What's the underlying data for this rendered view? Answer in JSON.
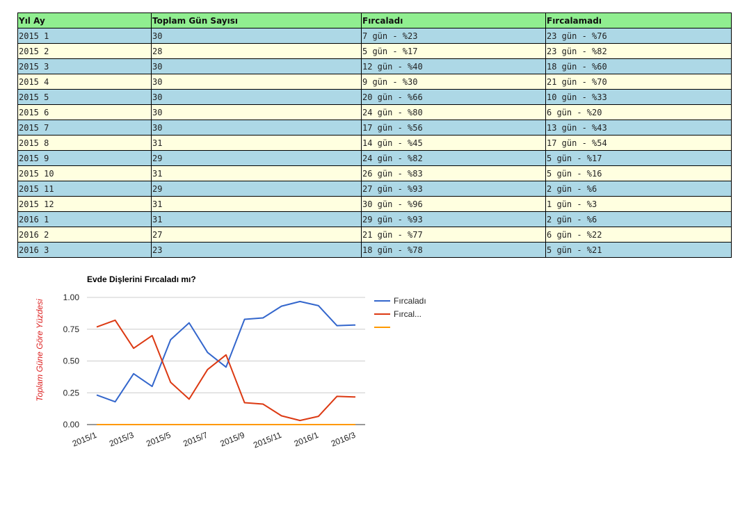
{
  "table": {
    "headers": [
      "Yıl Ay",
      "Toplam Gün Sayısı",
      "Fırcaladı",
      "Fırcalamadı"
    ],
    "rows": [
      [
        "2015 1",
        "30",
        "7 gün - %23",
        "23 gün - %76"
      ],
      [
        "2015 2",
        "28",
        "5 gün - %17",
        "23 gün - %82"
      ],
      [
        "2015 3",
        "30",
        "12 gün - %40",
        "18 gün - %60"
      ],
      [
        "2015 4",
        "30",
        "9 gün - %30",
        "21 gün - %70"
      ],
      [
        "2015 5",
        "30",
        "20 gün - %66",
        "10 gün - %33"
      ],
      [
        "2015 6",
        "30",
        "24 gün - %80",
        "6 gün - %20"
      ],
      [
        "2015 7",
        "30",
        "17 gün - %56",
        "13 gün - %43"
      ],
      [
        "2015 8",
        "31",
        "14 gün - %45",
        "17 gün - %54"
      ],
      [
        "2015 9",
        "29",
        "24 gün - %82",
        "5 gün - %17"
      ],
      [
        "2015 10",
        "31",
        "26 gün - %83",
        "5 gün - %16"
      ],
      [
        "2015 11",
        "29",
        "27 gün - %93",
        "2 gün - %6"
      ],
      [
        "2015 12",
        "31",
        "30 gün - %96",
        "1 gün - %3"
      ],
      [
        "2016 1",
        "31",
        "29 gün - %93",
        "2 gün - %6"
      ],
      [
        "2016 2",
        "27",
        "21 gün - %77",
        "6 gün - %22"
      ],
      [
        "2016 3",
        "23",
        "18 gün - %78",
        "5 gün - %21"
      ]
    ]
  },
  "chart_data": {
    "type": "line",
    "title": "Evde Dişlerini Fırcaladı mı?",
    "xlabel": "",
    "ylabel": "Toplam Güne Göre Yüzdesi",
    "ylim": [
      0,
      1
    ],
    "yticks": [
      "1.00",
      "0.75",
      "0.50",
      "0.25",
      "0.00"
    ],
    "x": [
      "2015/1",
      "2015/2",
      "2015/3",
      "2015/4",
      "2015/5",
      "2015/6",
      "2015/7",
      "2015/8",
      "2015/9",
      "2015/10",
      "2015/11",
      "2015/12",
      "2016/1",
      "2016/2",
      "2016/3"
    ],
    "xtick_labels": [
      "2015/1",
      "2015/3",
      "2015/5",
      "2015/7",
      "2015/9",
      "2015/11",
      "2016/1",
      "2016/3"
    ],
    "grid": true,
    "legend_position": "right",
    "series": [
      {
        "name": "Fırcaladı",
        "color": "#3366cc",
        "values": [
          0.233,
          0.179,
          0.4,
          0.3,
          0.667,
          0.8,
          0.567,
          0.452,
          0.828,
          0.839,
          0.931,
          0.968,
          0.935,
          0.778,
          0.783
        ]
      },
      {
        "name": "Fırcal...",
        "color": "#dc3912",
        "values": [
          0.767,
          0.821,
          0.6,
          0.7,
          0.333,
          0.2,
          0.433,
          0.548,
          0.172,
          0.161,
          0.069,
          0.032,
          0.065,
          0.222,
          0.217
        ]
      },
      {
        "name": "",
        "color": "#ff9900",
        "values": [
          0,
          0,
          0,
          0,
          0,
          0,
          0,
          0,
          0,
          0,
          0,
          0,
          0,
          0,
          0
        ]
      }
    ]
  }
}
